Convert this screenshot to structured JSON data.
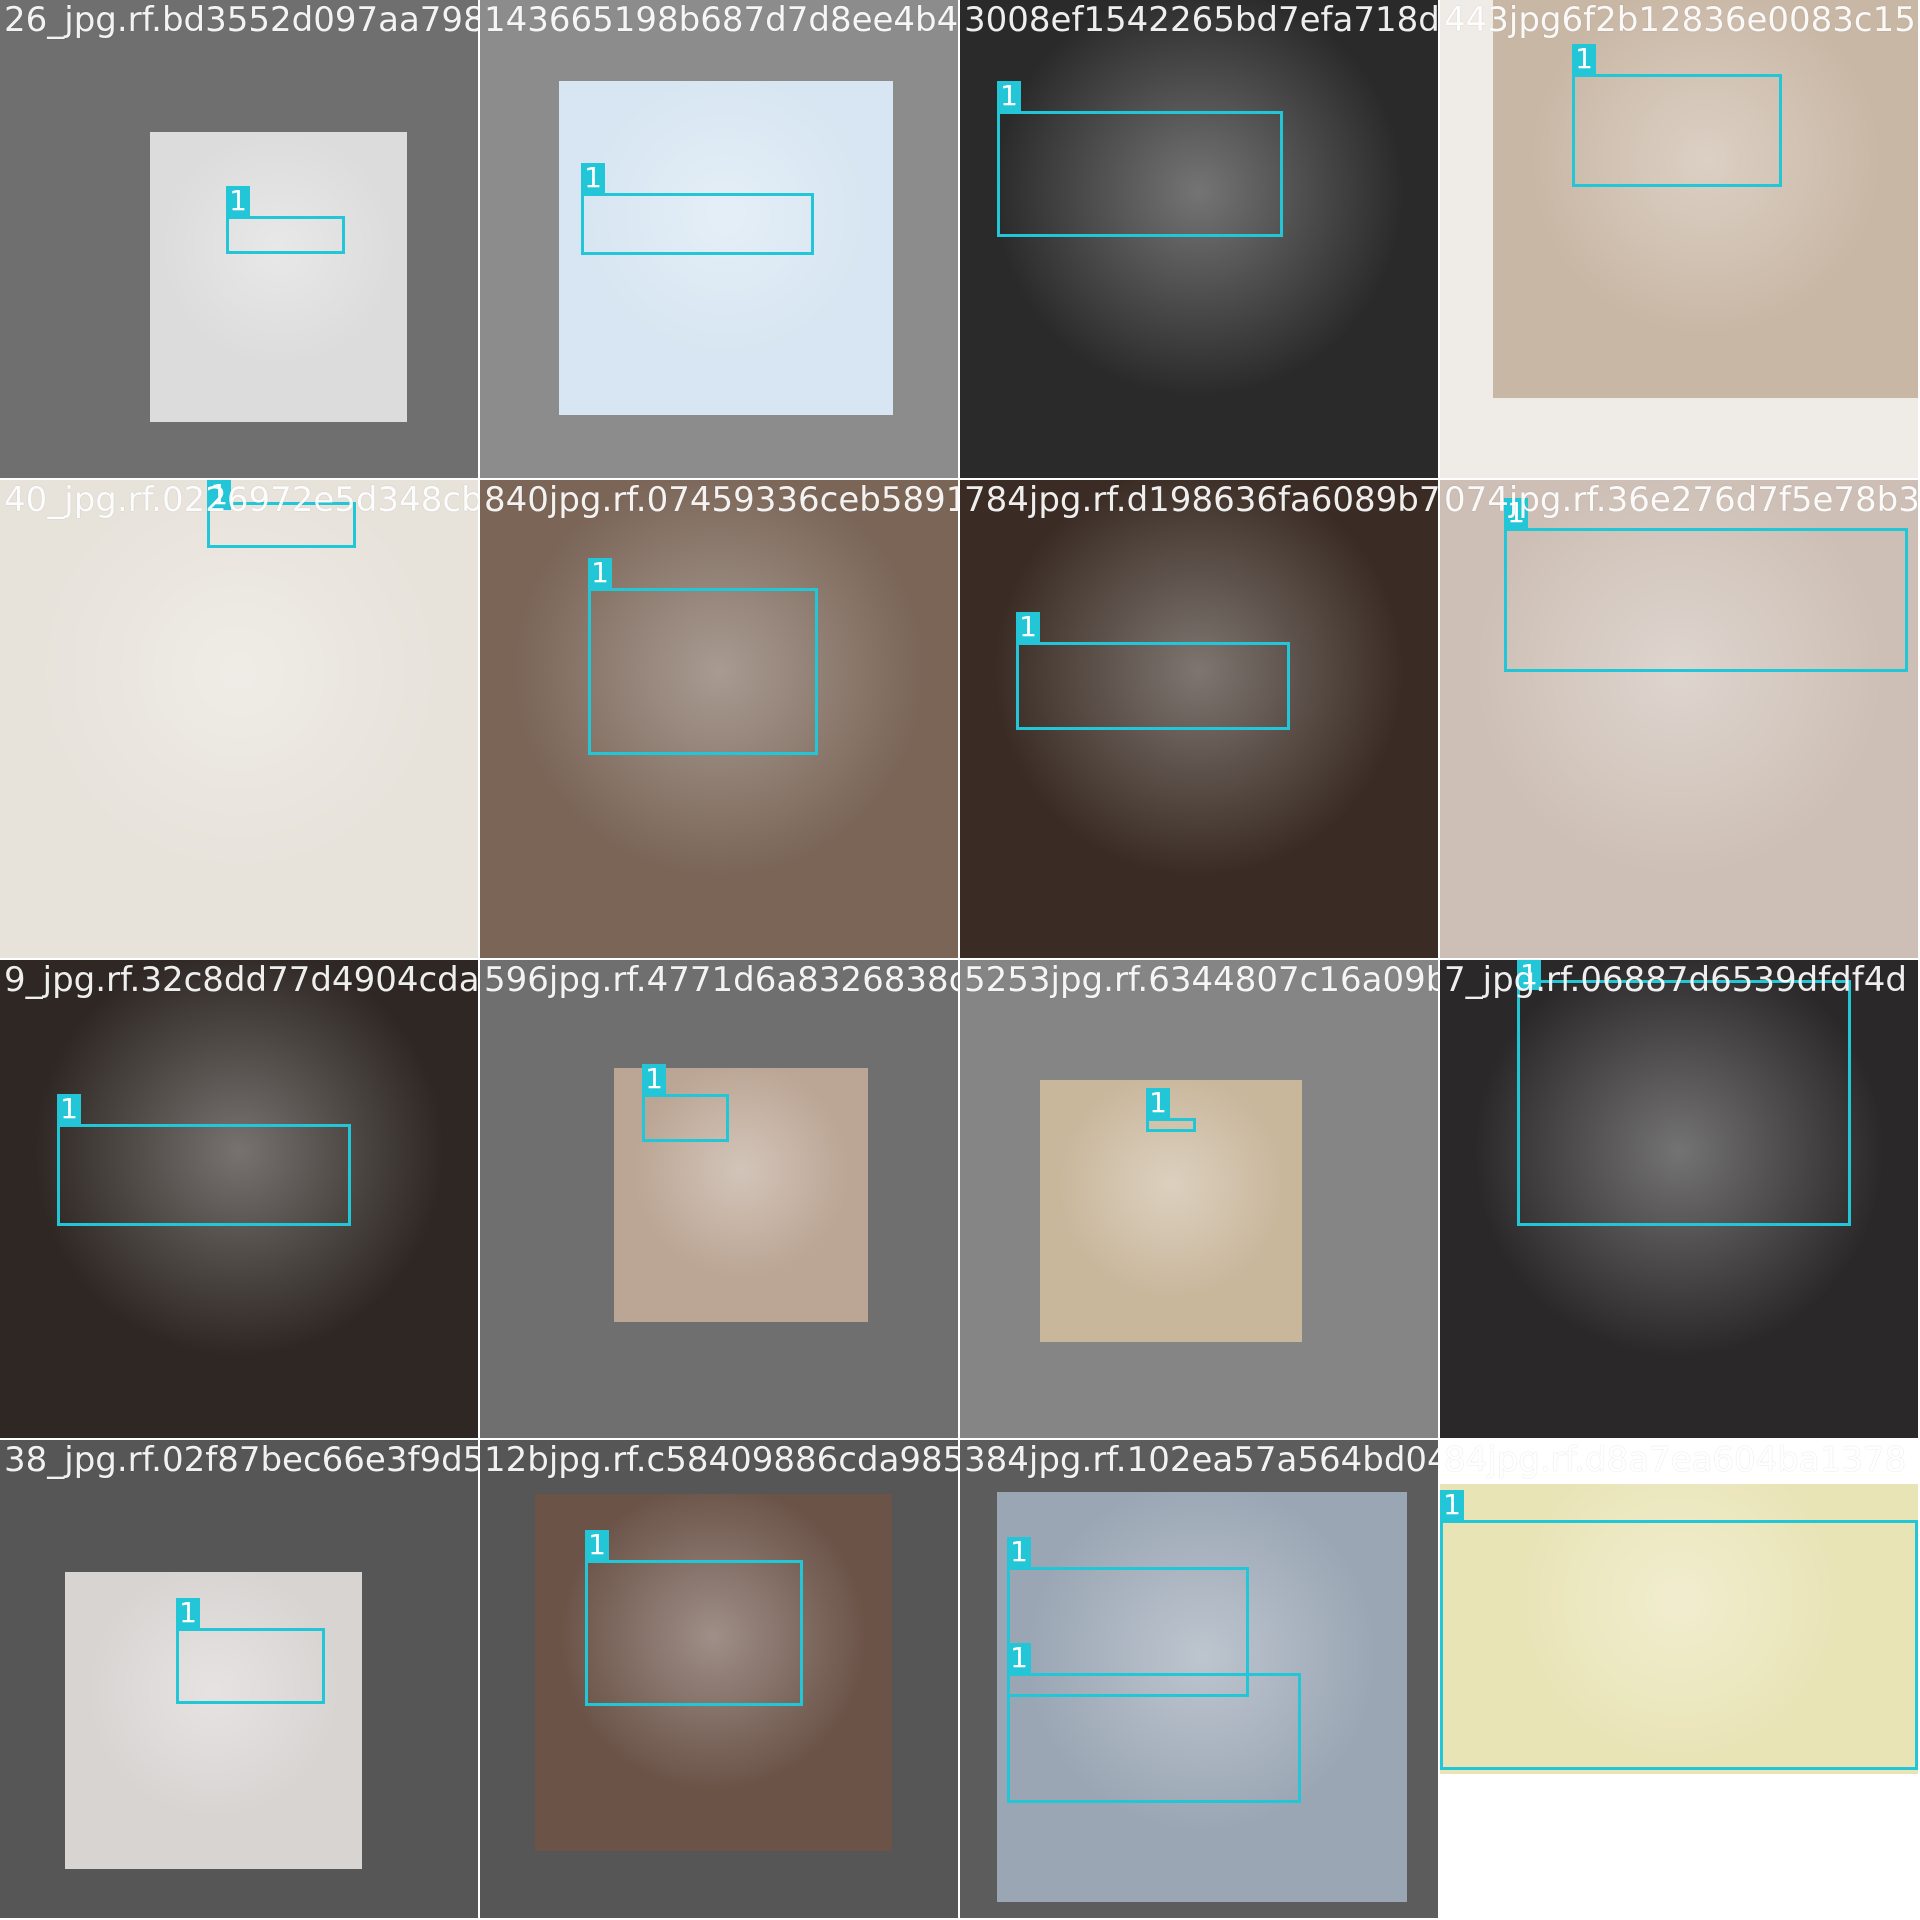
{
  "grid": {
    "rows": 4,
    "cols": 4,
    "box_color": "#22c6d6",
    "cells": [
      {
        "filename": "26_jpg.rf.bd3552d097aa798",
        "bg": "#6f6f6f",
        "photo": "#dcdcdc",
        "labels": [
          "1"
        ]
      },
      {
        "filename": "143665198b687d7d8ee4b46",
        "bg": "#8c8c8c",
        "photo": "#d7e6f2",
        "labels": [
          "1"
        ]
      },
      {
        "filename": "3008ef1542265bd7efa718d",
        "bg": "#bcd6e0",
        "photo": "#2a2a2a",
        "labels": [
          "1"
        ]
      },
      {
        "filename": "443jpg6f2b12836e0083c157",
        "bg": "#efece8",
        "photo": "#c9b7a5",
        "labels": [
          "1"
        ]
      },
      {
        "filename": "40_jpg.rf.0226972e5d348cb",
        "bg": "#d8cfc2",
        "photo": "#e7e2da",
        "labels": [
          "1"
        ]
      },
      {
        "filename": "840jpg.rf.07459336ceb589194",
        "bg": "#bfb2a6",
        "photo": "#7a6557",
        "labels": [
          "1"
        ]
      },
      {
        "filename": "784jpg.rf.d198636fa6089b750",
        "bg": "#f6f3ef",
        "photo": "#3a2c24",
        "labels": [
          "1"
        ]
      },
      {
        "filename": "074jpg.rf.36e276d7f5e78b3ea",
        "bg": "#d7d3cf",
        "photo": "#cdbfb5",
        "labels": [
          "1"
        ]
      },
      {
        "filename": "9_jpg.rf.32c8dd77d4904cda",
        "bg": "#a8ab9d",
        "photo": "#2e2723",
        "labels": [
          "1"
        ]
      },
      {
        "filename": "596jpg.rf.4771d6a8326838cfb5",
        "bg": "#6f6f6f",
        "photo": "#bba594",
        "labels": [
          "1"
        ]
      },
      {
        "filename": "5253jpg.rf.6344807c16a09b62",
        "bg": "#858585",
        "photo": "#c9b79c",
        "labels": [
          "1"
        ]
      },
      {
        "filename": "7_jpg.rf.06887d6539dfdf4d",
        "bg": "#e8e5e2",
        "photo": "#2a2828",
        "labels": [
          "1"
        ]
      },
      {
        "filename": "38_jpg.rf.02f87bec66e3f9d5",
        "bg": "#565656",
        "photo": "#d8d4d2",
        "labels": [
          "1"
        ]
      },
      {
        "filename": "12bjpg.rf.c58409886cda985",
        "bg": "#565656",
        "photo": "#6b5348",
        "labels": [
          "1"
        ]
      },
      {
        "filename": "384jpg.rf.102ea57a564bd040",
        "bg": "#5c5c5c",
        "photo": "#9aa6b4",
        "labels": [
          "1",
          "1"
        ]
      },
      {
        "filename": "84jpg.rf.d8a7ea604ba1378",
        "bg": "#ffffff",
        "photo": "#e9e4b6",
        "labels": [
          "1"
        ]
      }
    ]
  }
}
